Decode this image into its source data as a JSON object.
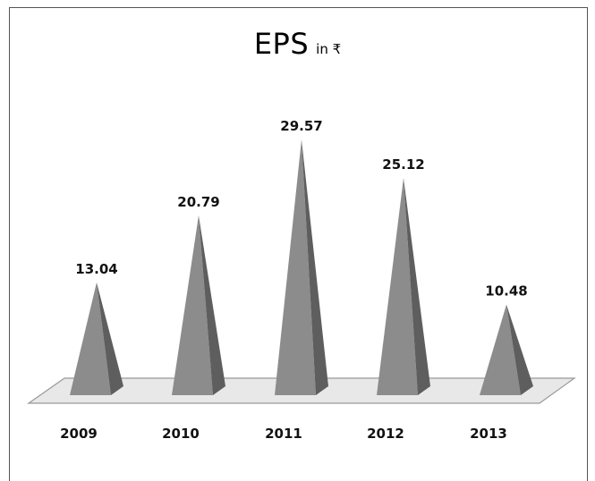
{
  "chart_data": {
    "type": "bar",
    "title": "EPS",
    "subtitle": "in ₹",
    "categories": [
      "2009",
      "2010",
      "2011",
      "2012",
      "2013"
    ],
    "values": [
      13.04,
      20.79,
      29.57,
      25.12,
      10.48
    ],
    "value_labels": [
      "13.04",
      "20.79",
      "29.57",
      "25.12",
      "10.48"
    ],
    "xlabel": "",
    "ylabel": "",
    "ylim": [
      0,
      29.57
    ],
    "grid": false,
    "legend": "none",
    "bar_shape": "pyramid-3d",
    "colors": {
      "front": "#8c8c8c",
      "side": "#5e5e5e",
      "floor": "#e8e8e8",
      "floor_stroke": "#999999"
    }
  }
}
